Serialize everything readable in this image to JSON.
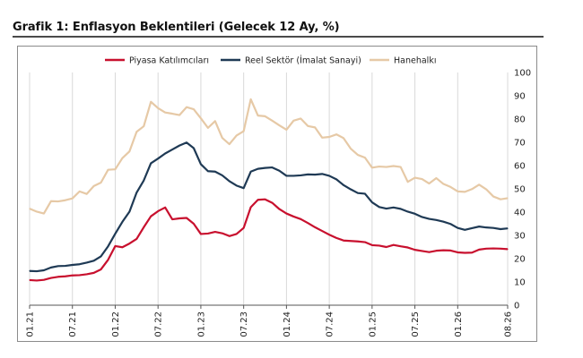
{
  "title": "Grafik 1: Enflasyon Beklentileri (Gelecek 12 Ay, %)",
  "colors": {
    "piyasa": "#c8102e",
    "reel": "#1f3a55",
    "hane": "#e6c9a6",
    "grid": "#d9d9d9",
    "axis": "#555555"
  },
  "chart_data": {
    "type": "line",
    "title": "Grafik 1: Enflasyon Beklentileri (Gelecek 12 Ay, %)",
    "xlabel": "",
    "ylabel": "",
    "ylim": [
      0,
      100
    ],
    "yticks": [
      0,
      10,
      20,
      30,
      40,
      50,
      60,
      70,
      80,
      90,
      100
    ],
    "y_axis_side": "right",
    "legend_position": "top",
    "grid": "vertical lines at x tick labels",
    "x_ticks": [
      "01.21",
      "07.21",
      "01.22",
      "07.22",
      "01.23",
      "07.23",
      "01.24",
      "07.24",
      "01.25",
      "07.25",
      "01.26",
      "08.26"
    ],
    "x": [
      "01.21",
      "02.21",
      "03.21",
      "04.21",
      "05.21",
      "06.21",
      "07.21",
      "08.21",
      "09.21",
      "10.21",
      "11.21",
      "12.21",
      "01.22",
      "02.22",
      "03.22",
      "04.22",
      "05.22",
      "06.22",
      "07.22",
      "08.22",
      "09.22",
      "10.22",
      "11.22",
      "12.22",
      "01.23",
      "02.23",
      "03.23",
      "04.23",
      "05.23",
      "06.23",
      "07.23",
      "08.23",
      "09.23",
      "10.23",
      "11.23",
      "12.23",
      "01.24",
      "02.24",
      "03.24",
      "04.24",
      "05.24",
      "06.24",
      "07.24",
      "08.24",
      "09.24",
      "10.24",
      "11.24",
      "12.24",
      "01.25",
      "02.25",
      "03.25",
      "04.25",
      "05.25",
      "06.25",
      "07.25",
      "08.25",
      "09.25",
      "10.25",
      "11.25",
      "12.25",
      "01.26",
      "02.26",
      "03.26",
      "04.26",
      "05.26",
      "06.26",
      "07.26",
      "08.26"
    ],
    "series": [
      {
        "name": "Piyasa Katılımcıları",
        "color": "#c8102e",
        "values": [
          10.8,
          10.6,
          10.9,
          11.7,
          12.2,
          12.4,
          12.8,
          12.9,
          13.3,
          13.9,
          15.4,
          19.5,
          25.4,
          24.9,
          26.5,
          28.5,
          33.5,
          38.2,
          40.4,
          42.0,
          36.9,
          37.3,
          37.5,
          35.0,
          30.6,
          30.8,
          31.5,
          30.9,
          29.7,
          30.6,
          33.2,
          42.1,
          45.3,
          45.5,
          44.0,
          41.3,
          39.4,
          38.1,
          37.0,
          35.3,
          33.5,
          31.9,
          30.3,
          28.9,
          27.8,
          27.6,
          27.4,
          27.1,
          25.8,
          25.6,
          25.0,
          25.9,
          25.3,
          24.8,
          23.8,
          23.3,
          22.8,
          23.4,
          23.6,
          23.5,
          22.7,
          22.5,
          22.6,
          23.9,
          24.3,
          24.4,
          24.3,
          24.1
        ]
      },
      {
        "name": "Reel Sektör (İmalat Sanayi)",
        "color": "#1f3a55",
        "values": [
          14.7,
          14.6,
          15.0,
          16.2,
          16.8,
          16.9,
          17.3,
          17.6,
          18.3,
          19.1,
          21.0,
          25.3,
          30.7,
          35.8,
          40.2,
          48.4,
          53.6,
          61.0,
          63.0,
          65.2,
          66.9,
          68.6,
          69.9,
          67.5,
          60.6,
          57.6,
          57.4,
          55.8,
          53.3,
          51.4,
          50.3,
          57.4,
          58.6,
          59.0,
          59.2,
          57.8,
          55.6,
          55.6,
          55.8,
          56.2,
          56.1,
          56.4,
          55.6,
          54.1,
          51.6,
          49.8,
          48.2,
          47.9,
          44.2,
          42.2,
          41.5,
          42.0,
          41.4,
          40.2,
          39.3,
          37.9,
          37.1,
          36.6,
          35.9,
          34.9,
          33.2,
          32.4,
          33.1,
          33.8,
          33.4,
          33.2,
          32.7,
          33.0
        ]
      },
      {
        "name": "Hanehalkı",
        "color": "#e6c9a6",
        "values": [
          41.5,
          40.2,
          39.4,
          44.7,
          44.6,
          45.1,
          45.9,
          48.9,
          47.8,
          51.2,
          52.7,
          58.2,
          58.4,
          63.2,
          66.1,
          74.5,
          76.9,
          87.4,
          84.7,
          82.8,
          82.3,
          81.7,
          85.1,
          84.2,
          80.3,
          76.2,
          79.1,
          71.9,
          69.2,
          72.9,
          74.8,
          88.5,
          81.5,
          81.2,
          79.3,
          77.3,
          75.4,
          79.3,
          80.2,
          77.0,
          76.4,
          72.0,
          72.3,
          73.4,
          71.8,
          67.3,
          64.6,
          63.4,
          59.1,
          59.6,
          59.4,
          59.8,
          59.4,
          53.0,
          54.8,
          54.2,
          52.3,
          54.6,
          52.1,
          50.8,
          48.9,
          48.7,
          49.9,
          51.8,
          49.8,
          46.7,
          45.5,
          46.0
        ]
      }
    ]
  }
}
